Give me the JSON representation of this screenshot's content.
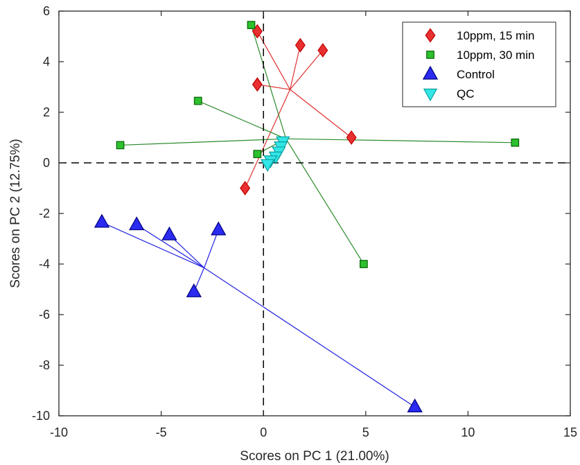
{
  "chart_data": {
    "type": "scatter",
    "title": "",
    "xlabel": "Scores on PC 1 (21.00%)",
    "ylabel": "Scores on PC 2 (12.75%)",
    "xlim": [
      -10,
      15
    ],
    "ylim": [
      -10,
      6
    ],
    "xticks": [
      -10,
      -5,
      0,
      5,
      10,
      15
    ],
    "yticks": [
      -10,
      -8,
      -6,
      -4,
      -2,
      0,
      2,
      4,
      6
    ],
    "grid": false,
    "reference_lines": [
      "x = 0 (dashed)",
      "y = 0 (dashed)"
    ],
    "legend_position": "top-right",
    "series": [
      {
        "name": "10ppm, 15 min",
        "marker": "diamond",
        "color": "#e83030",
        "edge": "#c00000",
        "centroid": [
          1.3,
          2.9
        ],
        "x": [
          -0.3,
          1.8,
          2.9,
          -0.3,
          4.3,
          -0.9
        ],
        "y": [
          5.2,
          4.65,
          4.45,
          3.1,
          1.0,
          -1.0
        ]
      },
      {
        "name": "10ppm, 30 min",
        "marker": "square",
        "color": "#2ec02e",
        "edge": "#0a6a0a",
        "centroid": [
          1.1,
          0.95
        ],
        "x": [
          -0.6,
          -3.2,
          -7.0,
          -0.3,
          12.3,
          4.9
        ],
        "y": [
          5.45,
          2.45,
          0.7,
          0.35,
          0.8,
          -4.0
        ]
      },
      {
        "name": "Control",
        "marker": "triangle-up",
        "color": "#2a2af0",
        "edge": "#000080",
        "centroid": [
          -2.9,
          -4.15
        ],
        "x": [
          -7.9,
          -6.2,
          -4.6,
          -2.2,
          -3.4,
          7.4
        ],
        "y": [
          -2.35,
          -2.45,
          -2.85,
          -2.65,
          -5.1,
          -9.65
        ]
      },
      {
        "name": "QC",
        "marker": "triangle-down",
        "color": "#33e6e6",
        "edge": "#0aa0a0",
        "x": [
          0.95,
          0.85,
          0.75,
          0.6,
          0.35,
          0.2
        ],
        "y": [
          0.85,
          0.65,
          0.45,
          0.25,
          0.1,
          -0.05
        ]
      }
    ]
  }
}
